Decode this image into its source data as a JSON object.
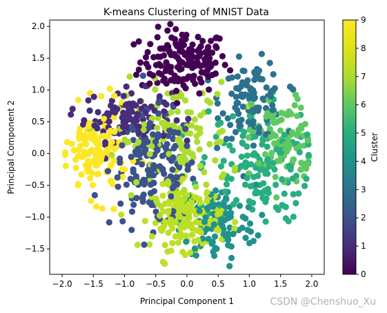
{
  "watermark": "CSDN @Chenshuo_Xu",
  "chart_data": {
    "type": "scatter",
    "title": "K-means Clustering of MNIST Data",
    "xlabel": "Principal Component 1",
    "ylabel": "Principal Component 2",
    "xlim": [
      -2.2,
      2.2
    ],
    "ylim": [
      -1.9,
      2.1
    ],
    "xticks": [
      -2.0,
      -1.5,
      -1.0,
      -0.5,
      0.0,
      0.5,
      1.0,
      1.5,
      2.0
    ],
    "xtick_labels": [
      "−2.0",
      "−1.5",
      "−1.0",
      "−0.5",
      "0.0",
      "0.5",
      "1.0",
      "1.5",
      "2.0"
    ],
    "yticks": [
      -1.5,
      -1.0,
      -0.5,
      0.0,
      0.5,
      1.0,
      1.5,
      2.0
    ],
    "ytick_labels": [
      "−1.5",
      "−1.0",
      "−0.5",
      "0.0",
      "0.5",
      "1.0",
      "1.5",
      "2.0"
    ],
    "grid": false,
    "colorbar": {
      "label": "Cluster",
      "range": [
        0,
        9
      ],
      "ticks": [
        0,
        1,
        2,
        3,
        4,
        5,
        6,
        7,
        8,
        9
      ],
      "tick_labels": [
        "0",
        "1",
        "2",
        "3",
        "4",
        "5",
        "6",
        "7",
        "8",
        "9"
      ],
      "colormap": "viridis"
    },
    "clusters": [
      {
        "cluster": 0,
        "color": "#440154",
        "center": [
          -0.05,
          1.45
        ],
        "spread": [
          0.35,
          0.25
        ],
        "count": 160
      },
      {
        "cluster": 1,
        "color": "#472d7b",
        "center": [
          -0.95,
          0.6
        ],
        "spread": [
          0.35,
          0.2
        ],
        "count": 110
      },
      {
        "cluster": 2,
        "color": "#3b528b",
        "center": [
          -0.55,
          -0.25
        ],
        "spread": [
          0.35,
          0.45
        ],
        "count": 170
      },
      {
        "cluster": 3,
        "color": "#2c728e",
        "center": [
          1.05,
          0.85
        ],
        "spread": [
          0.25,
          0.3
        ],
        "count": 110
      },
      {
        "cluster": 4,
        "color": "#21918c",
        "center": [
          0.5,
          -1.1
        ],
        "spread": [
          0.3,
          0.3
        ],
        "count": 110
      },
      {
        "cluster": 5,
        "color": "#28ae80",
        "center": [
          1.1,
          -0.2
        ],
        "spread": [
          0.45,
          0.45
        ],
        "count": 150
      },
      {
        "cluster": 6,
        "color": "#5ec962",
        "center": [
          1.55,
          0.2
        ],
        "spread": [
          0.25,
          0.4
        ],
        "count": 110
      },
      {
        "cluster": 7,
        "color": "#addc30",
        "center": [
          -0.2,
          0.2
        ],
        "spread": [
          0.45,
          0.45
        ],
        "count": 130
      },
      {
        "cluster": 8,
        "color": "#bddf26",
        "center": [
          0.0,
          -1.0
        ],
        "spread": [
          0.28,
          0.25
        ],
        "count": 170
      },
      {
        "cluster": 9,
        "color": "#fde725",
        "center": [
          -1.45,
          0.0
        ],
        "spread": [
          0.25,
          0.35
        ],
        "count": 130
      }
    ]
  }
}
